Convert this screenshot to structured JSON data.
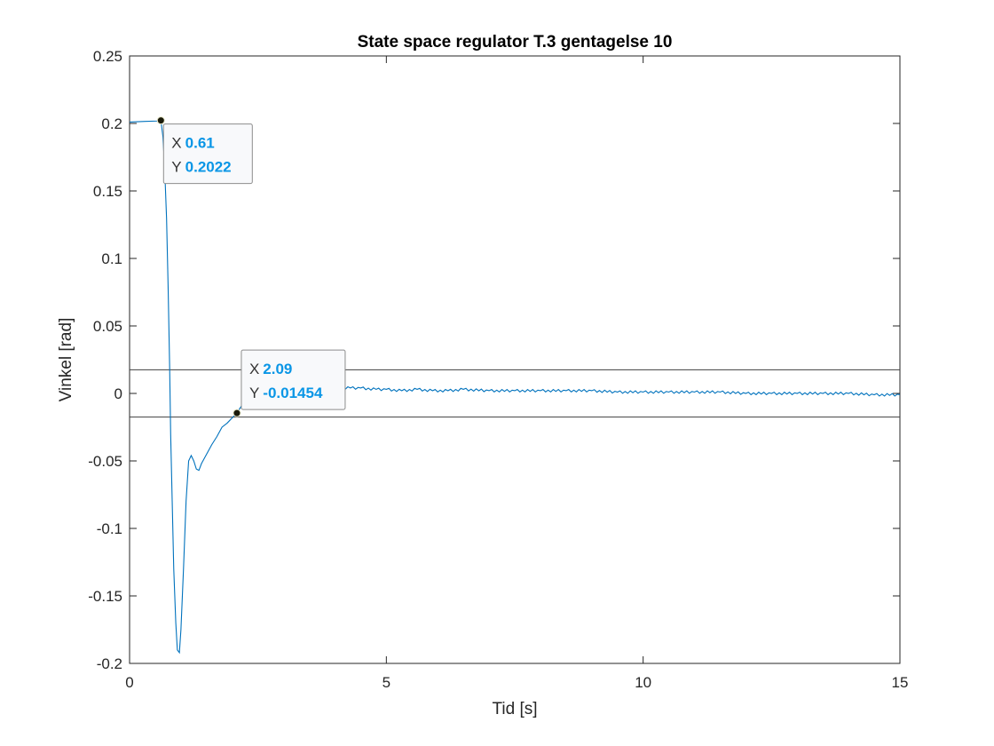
{
  "chart_data": {
    "type": "line",
    "title": "State space regulator T.3 gentagelse 10",
    "xlabel": "Tid [s]",
    "ylabel": "Vinkel [rad]",
    "xlim": [
      0,
      15
    ],
    "ylim": [
      -0.2,
      0.25
    ],
    "xticks": [
      "0",
      "5",
      "10",
      "15"
    ],
    "yticks": [
      "-0.2",
      "-0.15",
      "-0.1",
      "-0.05",
      "0",
      "0.05",
      "0.1",
      "0.15",
      "0.2",
      "0.25"
    ],
    "grid": false,
    "series": [
      {
        "color": "#0072bd",
        "x": [
          0,
          0.3,
          0.55,
          0.61,
          0.65,
          0.68,
          0.72,
          0.75,
          0.78,
          0.8,
          0.83,
          0.86,
          0.9,
          0.93,
          0.97,
          1.0,
          1.05,
          1.1,
          1.15,
          1.2,
          1.25,
          1.3,
          1.35,
          1.4,
          1.5,
          1.6,
          1.7,
          1.8,
          1.9,
          2.0,
          2.09,
          2.2,
          2.35,
          2.5,
          2.7,
          2.9,
          3.0,
          3.2,
          3.5,
          3.8,
          4.0,
          4.3,
          4.5,
          4.8,
          5.0,
          5.3,
          5.6,
          5.9,
          6.2,
          6.5,
          7.0,
          7.5,
          8.0,
          8.5,
          9.0,
          9.5,
          10.0,
          10.5,
          11.0,
          11.5,
          12.0,
          12.5,
          13.0,
          13.5,
          14.0,
          14.5,
          15.0
        ],
        "y": [
          0.201,
          0.2015,
          0.2018,
          0.2022,
          0.19,
          0.17,
          0.13,
          0.08,
          0.02,
          -0.03,
          -0.08,
          -0.13,
          -0.17,
          -0.19,
          -0.192,
          -0.175,
          -0.13,
          -0.08,
          -0.05,
          -0.046,
          -0.05,
          -0.056,
          -0.057,
          -0.052,
          -0.045,
          -0.038,
          -0.032,
          -0.025,
          -0.022,
          -0.018,
          -0.01454,
          -0.008,
          -0.003,
          0.001,
          0.003,
          0.004,
          0.004,
          0.004,
          0.004,
          0.004,
          0.004,
          0.004,
          0.004,
          0.003,
          0.003,
          0.002,
          0.003,
          0.002,
          0.002,
          0.003,
          0.002,
          0.002,
          0.002,
          0.002,
          0.002,
          0.001,
          0.001,
          0.001,
          0.001,
          0.001,
          0.0,
          0.0,
          0.0,
          0.0,
          0.0,
          -0.001,
          -0.001
        ]
      }
    ],
    "reference_lines": [
      0.0175,
      -0.0175
    ],
    "datatips": [
      {
        "x": 0.61,
        "y": 0.2022,
        "x_label": "X",
        "y_label": "Y",
        "x_text": "0.61",
        "y_text": "0.2022"
      },
      {
        "x": 2.09,
        "y": -0.01454,
        "x_label": "X",
        "y_label": "Y",
        "x_text": "2.09",
        "y_text": "-0.01454"
      }
    ]
  }
}
